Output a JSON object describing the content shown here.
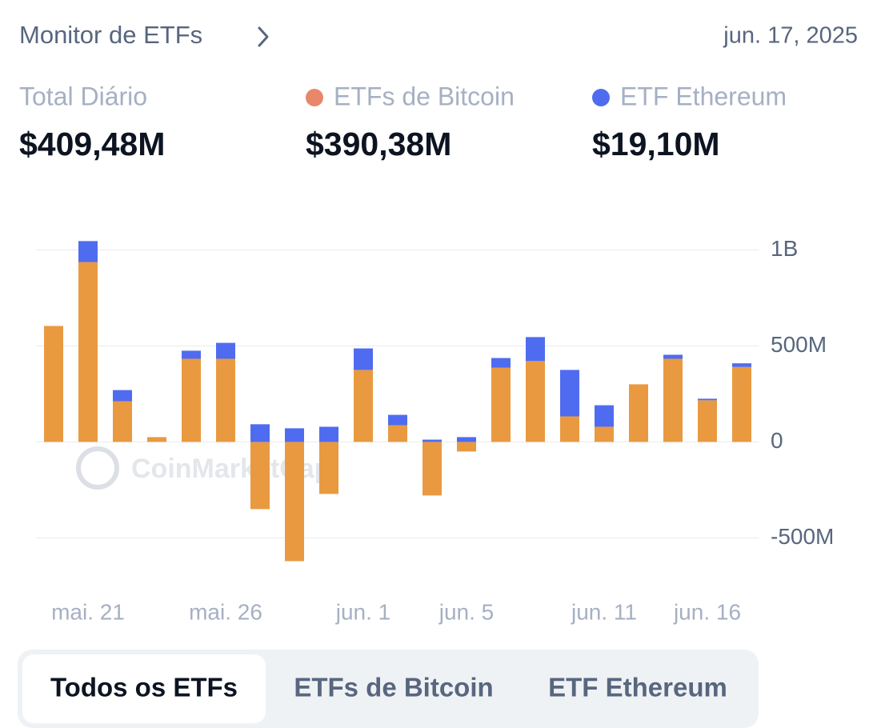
{
  "header": {
    "title": "Monitor de ETFs",
    "date": "jun. 17, 2025"
  },
  "summary": [
    {
      "label": "Total Diário",
      "value": "$409,48M"
    },
    {
      "label": "ETFs de Bitcoin",
      "value": "$390,38M",
      "color": "#e9876a"
    },
    {
      "label": "ETF Ethereum",
      "value": "$19,10M",
      "color": "#4f6cf0"
    }
  ],
  "tabs": [
    "Todos os ETFs",
    "ETFs de Bitcoin",
    "ETF Ethereum"
  ],
  "chart_data": {
    "type": "stacked_bar",
    "watermark": "CoinMarketCap",
    "categories": [
      null,
      "mai. 21",
      null,
      null,
      null,
      "mai. 26",
      null,
      null,
      null,
      "jun. 1",
      null,
      null,
      "jun. 5",
      null,
      null,
      null,
      "jun. 11",
      null,
      null,
      "jun. 16",
      null
    ],
    "series": [
      {
        "name": "ETFs de Bitcoin",
        "color": "#e99a40",
        "values": [
          604,
          937,
          212,
          25,
          433,
          433,
          -350,
          -621,
          -271,
          375,
          87,
          -279,
          -50,
          387,
          421,
          133,
          79,
          300,
          433,
          217,
          390.38
        ]
      },
      {
        "name": "ETF Ethereum",
        "color": "#4f6cf0",
        "values": [
          0,
          109,
          58,
          0,
          42,
          83,
          92,
          71,
          79,
          112,
          54,
          12,
          25,
          50,
          125,
          242,
          112,
          0,
          21,
          8,
          19.1
        ]
      }
    ],
    "ylim": [
      -690,
      1110
    ],
    "yticks": [
      {
        "value": -500,
        "label": "-500M"
      },
      0,
      {
        "value": 500,
        "label": "500M"
      },
      {
        "value": 1000,
        "label": "1B"
      }
    ],
    "grid": true
  }
}
